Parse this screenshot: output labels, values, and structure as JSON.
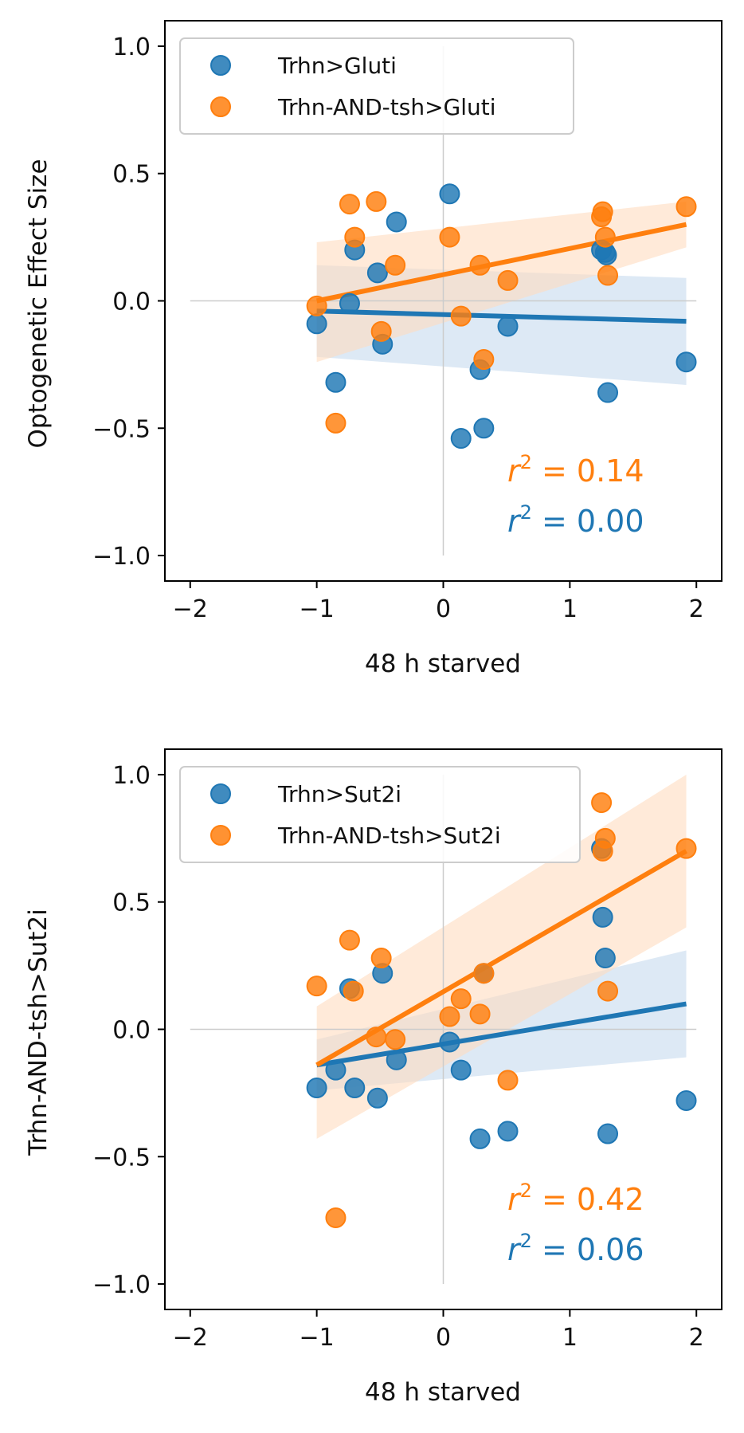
{
  "colors": {
    "series_a": "#1f77b4",
    "series_b": "#ff7f0e",
    "band_a": "#c6dbef",
    "band_b": "#ffdcbf",
    "axis": "#000000",
    "refline": "#cccccc"
  },
  "chart_data": [
    {
      "type": "scatter",
      "title": "",
      "xlabel": "48 h starved",
      "ylabel": "Optogenetic Effect Size",
      "xlim": [
        -2.2,
        2.2
      ],
      "ylim": [
        -1.1,
        1.1
      ],
      "xticks": [
        -2,
        -1,
        0,
        1,
        2
      ],
      "yticks": [
        -1.0,
        -0.5,
        0.0,
        0.5,
        1.0
      ],
      "xtick_labels": [
        "−2",
        "−1",
        "0",
        "1",
        "2"
      ],
      "ytick_labels": [
        "−1.0",
        "−0.5",
        "0.0",
        "0.5",
        "1.0"
      ],
      "legend_position": "top-left",
      "series": [
        {
          "name": "Trhn>Gluti",
          "color": "#1f77b4",
          "x": [
            -1.0,
            -0.85,
            -0.74,
            -0.7,
            -0.52,
            -0.48,
            -0.37,
            0.05,
            0.14,
            0.29,
            0.32,
            0.51,
            1.25,
            1.28,
            1.29,
            1.3,
            1.92
          ],
          "y": [
            -0.09,
            -0.32,
            -0.01,
            0.2,
            0.11,
            -0.17,
            0.31,
            0.42,
            -0.54,
            -0.27,
            -0.5,
            -0.1,
            0.2,
            0.19,
            0.18,
            -0.36,
            -0.24
          ],
          "fit": {
            "x": [
              -1.0,
              1.92
            ],
            "y": [
              -0.04,
              -0.08
            ]
          },
          "ci_upper": [
            0.14,
            0.09
          ],
          "ci_lower": [
            -0.22,
            -0.33
          ],
          "r2_label": "$r^2 = 0.00$",
          "r2_text": "0.00"
        },
        {
          "name": "Trhn-AND-tsh>Gluti",
          "color": "#ff7f0e",
          "x": [
            -1.0,
            -0.85,
            -0.74,
            -0.7,
            -0.53,
            -0.49,
            -0.38,
            0.05,
            0.14,
            0.29,
            0.32,
            0.51,
            1.25,
            1.26,
            1.28,
            1.3,
            1.92
          ],
          "y": [
            -0.02,
            -0.48,
            0.38,
            0.25,
            0.39,
            -0.12,
            0.14,
            0.25,
            -0.06,
            0.14,
            -0.23,
            0.08,
            0.33,
            0.35,
            0.25,
            0.1,
            0.37
          ],
          "fit": {
            "x": [
              -1.0,
              1.92
            ],
            "y": [
              0.0,
              0.3
            ]
          },
          "ci_upper": [
            0.23,
            0.39
          ],
          "ci_lower": [
            -0.24,
            0.21
          ],
          "r2_label": "$r^2 = 0.14$",
          "r2_text": "0.14"
        }
      ]
    },
    {
      "type": "scatter",
      "title": "",
      "xlabel": "48 h starved",
      "ylabel": "Trhn-AND-tsh>Sut2i",
      "xlim": [
        -2.2,
        2.2
      ],
      "ylim": [
        -1.1,
        1.1
      ],
      "xticks": [
        -2,
        -1,
        0,
        1,
        2
      ],
      "yticks": [
        -1.0,
        -0.5,
        0.0,
        0.5,
        1.0
      ],
      "xtick_labels": [
        "−2",
        "−1",
        "0",
        "1",
        "2"
      ],
      "ytick_labels": [
        "−1.0",
        "−0.5",
        "0.0",
        "0.5",
        "1.0"
      ],
      "legend_position": "top-left",
      "series": [
        {
          "name": "Trhn>Sut2i",
          "color": "#1f77b4",
          "x": [
            -1.0,
            -0.85,
            -0.74,
            -0.7,
            -0.52,
            -0.48,
            -0.37,
            0.05,
            0.14,
            0.29,
            0.32,
            0.51,
            1.25,
            1.26,
            1.28,
            1.3,
            1.92
          ],
          "y": [
            -0.23,
            -0.16,
            0.16,
            -0.23,
            -0.27,
            0.22,
            -0.12,
            -0.05,
            -0.16,
            -0.43,
            0.22,
            -0.4,
            0.71,
            0.44,
            0.28,
            -0.41,
            -0.28
          ],
          "fit": {
            "x": [
              -1.0,
              1.92
            ],
            "y": [
              -0.14,
              0.1
            ]
          },
          "ci_upper": [
            -0.04,
            0.31
          ],
          "ci_lower": [
            -0.24,
            -0.11
          ],
          "r2_label": "$r^2 = 0.06$",
          "r2_text": "0.06"
        },
        {
          "name": "Trhn-AND-tsh>Sut2i",
          "color": "#ff7f0e",
          "x": [
            -1.0,
            -0.85,
            -0.74,
            -0.71,
            -0.53,
            -0.49,
            -0.38,
            0.05,
            0.14,
            0.29,
            0.32,
            0.51,
            1.25,
            1.26,
            1.28,
            1.3,
            1.92
          ],
          "y": [
            0.17,
            -0.74,
            0.35,
            0.15,
            -0.03,
            0.28,
            -0.04,
            0.05,
            0.12,
            0.06,
            0.22,
            -0.2,
            0.89,
            0.7,
            0.75,
            0.15,
            0.71
          ],
          "fit": {
            "x": [
              -1.0,
              1.92
            ],
            "y": [
              -0.14,
              0.7
            ]
          },
          "ci_upper": [
            0.09,
            1.0
          ],
          "ci_lower": [
            -0.43,
            0.4
          ],
          "r2_label": "$r^2 = 0.42$",
          "r2_text": "0.42"
        }
      ]
    }
  ]
}
